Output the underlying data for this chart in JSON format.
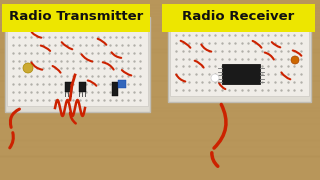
{
  "bg_color": "#b8965a",
  "label_left_text": "Radio Transmitter",
  "label_right_text": "Radio Receiver",
  "label_bg_color": "#ede600",
  "label_text_color": "#111111",
  "font_size": 9.5,
  "font_weight": "bold",
  "board_color": "#e0ddd5",
  "board_color2": "#d8d5ce",
  "board_border": "#c0bdb5",
  "wire_red": "#cc2200",
  "wire_orange": "#cc4400",
  "component_dark": "#1a1a1a",
  "component_blue": "#3355aa",
  "component_yellow": "#ccaa00",
  "hole_color": "#b0aea8"
}
